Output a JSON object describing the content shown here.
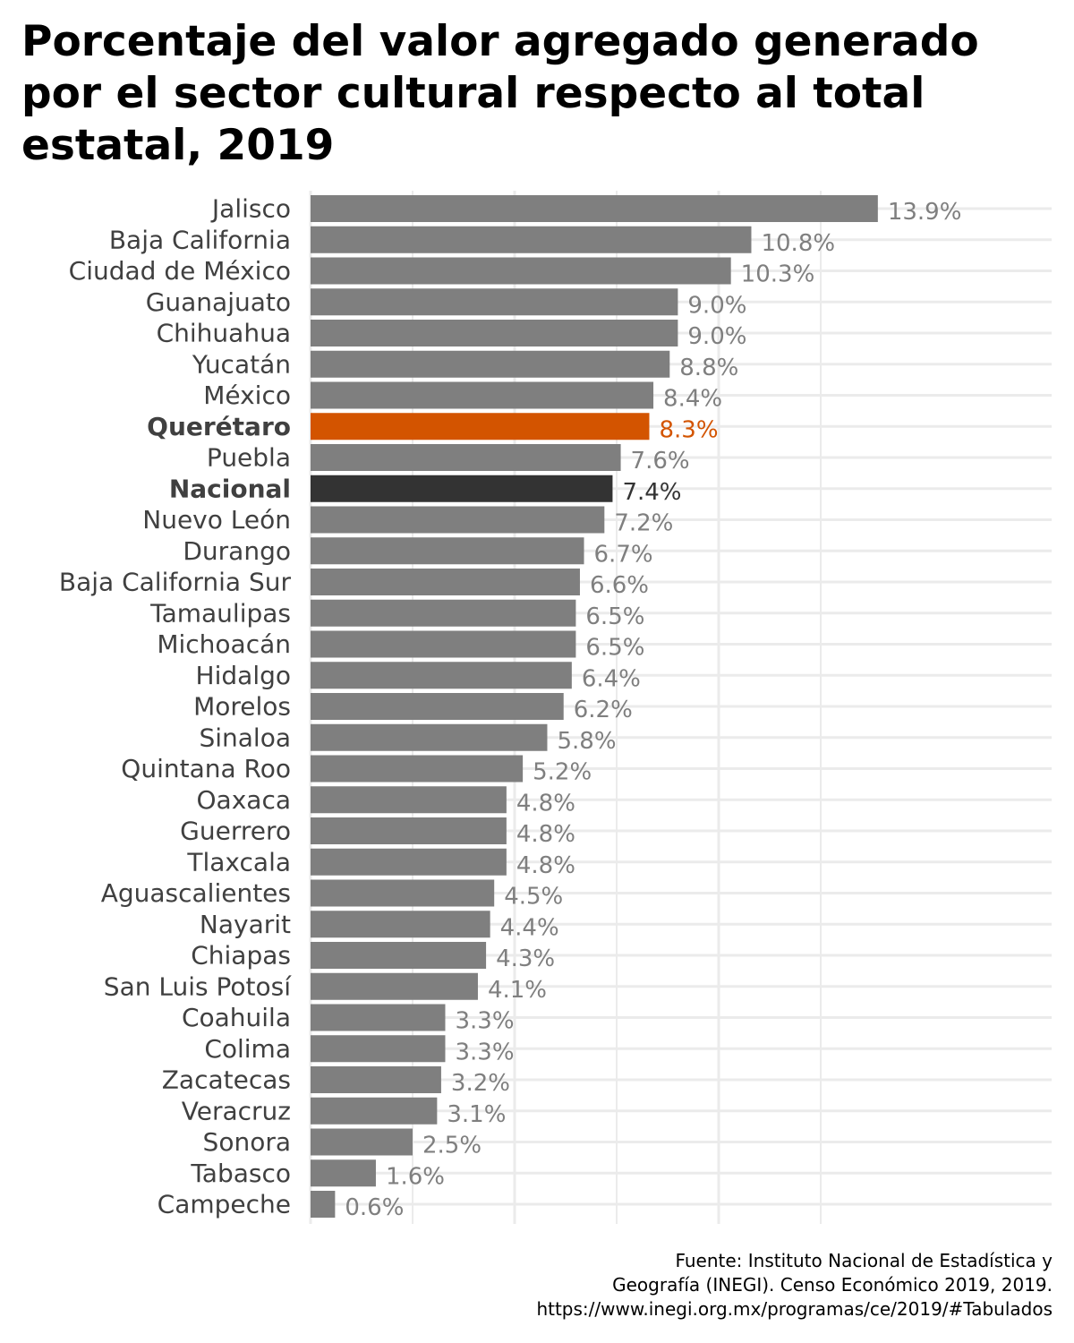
{
  "chart_data": {
    "type": "bar",
    "orientation": "horizontal",
    "title": "Porcentaje del valor agregado generado\npor el sector cultural respecto al total\nestatal, 2019",
    "xlabel": "",
    "ylabel": "",
    "xlim": [
      0,
      14.6
    ],
    "grid": true,
    "categories": [
      "Jalisco",
      "Baja California",
      "Ciudad de México",
      "Guanajuato",
      "Chihuahua",
      "Yucatán",
      "México",
      "Querétaro",
      "Puebla",
      "Nacional",
      "Nuevo León",
      "Durango",
      "Baja California Sur",
      "Tamaulipas",
      "Michoacán",
      "Hidalgo",
      "Morelos",
      "Sinaloa",
      "Quintana Roo",
      "Oaxaca",
      "Guerrero",
      "Tlaxcala",
      "Aguascalientes",
      "Nayarit",
      "Chiapas",
      "San Luis Potosí",
      "Coahuila",
      "Colima",
      "Zacatecas",
      "Veracruz",
      "Sonora",
      "Tabasco",
      "Campeche"
    ],
    "values": [
      13.9,
      10.8,
      10.3,
      9.0,
      9.0,
      8.8,
      8.4,
      8.3,
      7.6,
      7.4,
      7.2,
      6.7,
      6.6,
      6.5,
      6.5,
      6.4,
      6.2,
      5.8,
      5.2,
      4.8,
      4.8,
      4.8,
      4.5,
      4.4,
      4.3,
      4.1,
      3.3,
      3.3,
      3.2,
      3.1,
      2.5,
      1.6,
      0.6
    ],
    "value_labels": [
      "13.9%",
      "10.8%",
      "10.3%",
      "9.0%",
      "9.0%",
      "8.8%",
      "8.4%",
      "8.3%",
      "7.6%",
      "7.4%",
      "7.2%",
      "6.7%",
      "6.6%",
      "6.5%",
      "6.5%",
      "6.4%",
      "6.2%",
      "5.8%",
      "5.2%",
      "4.8%",
      "4.8%",
      "4.8%",
      "4.5%",
      "4.4%",
      "4.3%",
      "4.1%",
      "3.3%",
      "3.3%",
      "3.2%",
      "3.1%",
      "2.5%",
      "1.6%",
      "0.6%"
    ],
    "highlight": {
      "Querétaro": "#d35400",
      "Nacional": "#333333"
    },
    "bar_color": "#7f7f7f",
    "label_color": "#404040",
    "value_color": "#7f7f7f"
  },
  "source": {
    "lines": [
      "Fuente: Instituto Nacional de Estadística y",
      "Geografía (INEGI). Censo Económico 2019, 2019.",
      "https://www.inegi.org.mx/programas/ce/2019/#Tabulados"
    ]
  }
}
